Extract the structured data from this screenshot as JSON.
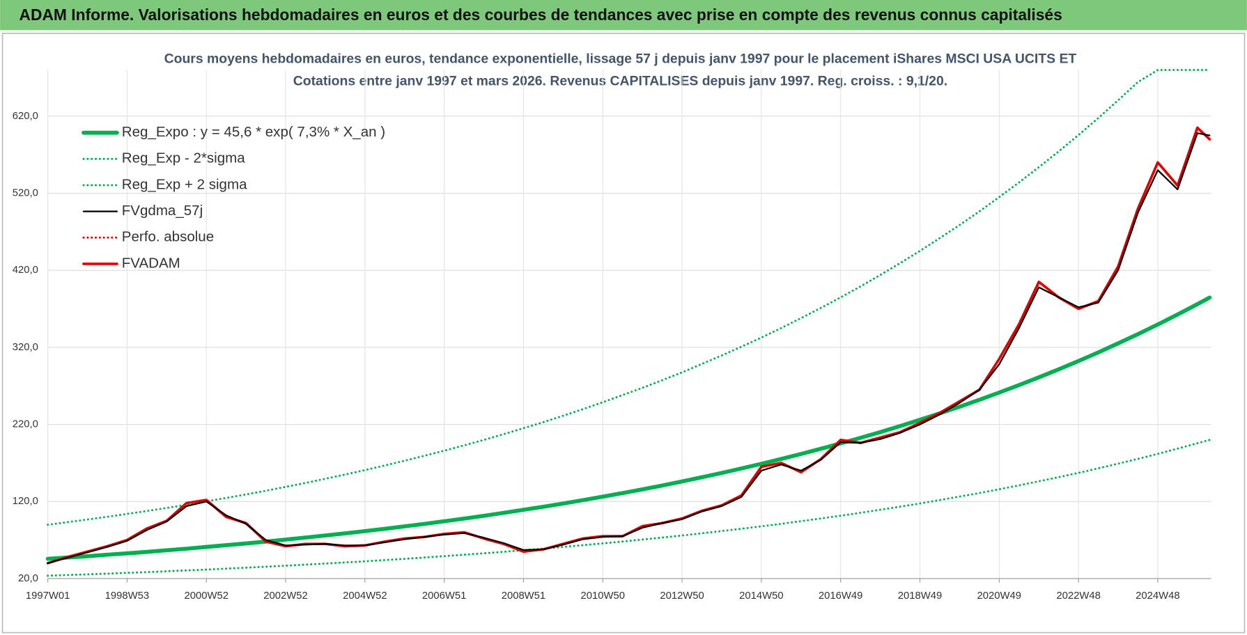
{
  "header": {
    "title": "ADAM Informe. Valorisations hebdomadaires en euros et des courbes de tendances avec prise en compte des revenus connus capitalisés"
  },
  "chart_data": {
    "type": "line",
    "title": "Cours moyens hebdomadaires en euros, tendance exponentielle, lissage 57 j depuis janv 1997 pour le placement iShares MSCI USA UCITS ET",
    "subtitle": "Cotations entre janv 1997 et mars 2026. Revenus CAPITALISES depuis janv 1997. Reg. croiss. : 9,1/20.",
    "x": [
      0,
      26,
      52,
      78,
      104,
      130,
      156,
      182,
      208,
      234,
      260,
      286,
      312,
      338,
      364,
      390,
      416,
      442,
      468,
      494,
      520,
      546,
      572,
      598,
      624,
      650,
      676,
      702,
      728,
      754,
      780,
      806,
      832,
      858,
      884,
      910,
      936,
      962,
      988,
      1014,
      1040,
      1066,
      1092,
      1118,
      1144,
      1170,
      1196,
      1222,
      1248,
      1274,
      1300,
      1326,
      1352,
      1378,
      1404,
      1430,
      1456,
      1482,
      1508,
      1524
    ],
    "xlim": [
      0,
      1526
    ],
    "xticks": [
      {
        "value": 0,
        "label": "1997W01"
      },
      {
        "value": 104,
        "label": "1998W53"
      },
      {
        "value": 208,
        "label": "2000W52"
      },
      {
        "value": 312,
        "label": "2002W52"
      },
      {
        "value": 416,
        "label": "2004W52"
      },
      {
        "value": 520,
        "label": "2006W51"
      },
      {
        "value": 624,
        "label": "2008W51"
      },
      {
        "value": 728,
        "label": "2010W50"
      },
      {
        "value": 832,
        "label": "2012W50"
      },
      {
        "value": 936,
        "label": "2014W50"
      },
      {
        "value": 1040,
        "label": "2016W49"
      },
      {
        "value": 1144,
        "label": "2018W49"
      },
      {
        "value": 1248,
        "label": "2020W49"
      },
      {
        "value": 1352,
        "label": "2022W48"
      },
      {
        "value": 1456,
        "label": "2024W48"
      }
    ],
    "ylim": [
      20,
      680
    ],
    "yticks": [
      {
        "value": 20,
        "label": "20,0"
      },
      {
        "value": 120,
        "label": "120,0"
      },
      {
        "value": 220,
        "label": "220,0"
      },
      {
        "value": 320,
        "label": "320,0"
      },
      {
        "value": 420,
        "label": "420,0"
      },
      {
        "value": 520,
        "label": "520,0"
      },
      {
        "value": 620,
        "label": "620,0"
      }
    ],
    "grid": true,
    "legend": "upper left",
    "series": [
      {
        "name": "Reg_Expo : y = 45,6 * exp( 7,3% *  X_an )",
        "color": "#00b050",
        "dash": "solid",
        "values": [
          45.6,
          47.3,
          49.0,
          50.9,
          52.7,
          54.7,
          56.7,
          58.8,
          61.0,
          63.3,
          65.6,
          68.0,
          70.6,
          73.2,
          75.9,
          78.7,
          81.6,
          84.6,
          87.8,
          91.0,
          94.4,
          97.9,
          101.5,
          105.3,
          109.2,
          113.2,
          117.4,
          121.8,
          126.3,
          131.0,
          135.8,
          140.8,
          146.0,
          151.5,
          157.1,
          162.9,
          168.9,
          175.2,
          181.7,
          188.4,
          195.4,
          202.6,
          210.1,
          217.9,
          226.0,
          234.4,
          243.0,
          252.0,
          261.4,
          271.1,
          281.1,
          291.5,
          302.3,
          313.5,
          325.2,
          337.2,
          349.7,
          362.7,
          376.1,
          384.6
        ]
      },
      {
        "name": "Reg_Exp - 2*sigma",
        "color": "#00b050",
        "dash": "dotted",
        "values": [
          23.7,
          24.6,
          25.5,
          26.4,
          27.4,
          28.4,
          29.5,
          30.6,
          31.7,
          32.9,
          34.1,
          35.4,
          36.7,
          38.0,
          39.5,
          40.9,
          42.4,
          44.0,
          45.6,
          47.3,
          49.1,
          50.9,
          52.8,
          54.8,
          56.8,
          58.9,
          61.0,
          63.3,
          65.7,
          68.1,
          70.6,
          73.2,
          75.9,
          78.8,
          81.7,
          84.7,
          87.8,
          91.1,
          94.5,
          98.0,
          101.6,
          105.4,
          109.3,
          113.3,
          117.5,
          121.9,
          126.4,
          131.0,
          135.9,
          141.0,
          146.2,
          151.6,
          157.2,
          163.0,
          169.1,
          175.3,
          181.8,
          188.6,
          195.6,
          200.0
        ]
      },
      {
        "name": "Reg_Exp + 2 sigma",
        "color": "#00b050",
        "dash": "dotted",
        "values": [
          89.8,
          93.2,
          96.6,
          100.2,
          103.9,
          107.7,
          111.7,
          115.9,
          120.2,
          124.6,
          129.2,
          134.0,
          139.0,
          144.1,
          149.5,
          155.0,
          160.8,
          166.7,
          172.9,
          179.3,
          185.9,
          192.8,
          200.0,
          207.4,
          215.1,
          223.0,
          231.3,
          239.9,
          248.8,
          258.1,
          267.5,
          277.4,
          287.6,
          298.5,
          309.5,
          320.9,
          332.7,
          345.1,
          357.9,
          371.1,
          384.9,
          399.1,
          413.9,
          429.3,
          445.2,
          461.8,
          478.7,
          496.4,
          515.0,
          534.1,
          553.8,
          574.3,
          595.5,
          617.6,
          640.6,
          664.3,
          680,
          680,
          680,
          680
        ]
      },
      {
        "name": "FVgdma_57j",
        "color": "#000000",
        "dash": "solid",
        "values": [
          40,
          47,
          54,
          61,
          69,
          83,
          94,
          114,
          120,
          102,
          91,
          70,
          63,
          64,
          65,
          63,
          63,
          67,
          71,
          74,
          77,
          79,
          73,
          66,
          57,
          58,
          64,
          71,
          74,
          75,
          86,
          92,
          97,
          107,
          114,
          126,
          160,
          168,
          160,
          174,
          197,
          196,
          201,
          209,
          220,
          233,
          248,
          265,
          298,
          345,
          398,
          385,
          372,
          378,
          420,
          495,
          550,
          525,
          598,
          595
        ]
      },
      {
        "name": "Perfo. absolue",
        "color": "#e00000",
        "dash": "dotted",
        "values": [
          40,
          48,
          55,
          62,
          70,
          85,
          95,
          118,
          122,
          100,
          92,
          68,
          62,
          65,
          65,
          62,
          63,
          68,
          72,
          74,
          78,
          80,
          72,
          65,
          55,
          58,
          65,
          72,
          75,
          75,
          88,
          92,
          98,
          108,
          115,
          128,
          165,
          170,
          158,
          175,
          200,
          196,
          203,
          210,
          222,
          235,
          250,
          265,
          305,
          350,
          405,
          385,
          370,
          380,
          425,
          500,
          560,
          530,
          605,
          590
        ]
      },
      {
        "name": "FVADAM",
        "color": "#e00000",
        "dash": "solid",
        "values": [
          40,
          48,
          55,
          62,
          70,
          85,
          95,
          118,
          122,
          100,
          92,
          68,
          62,
          65,
          65,
          62,
          63,
          68,
          72,
          74,
          78,
          80,
          72,
          65,
          55,
          58,
          65,
          72,
          75,
          75,
          88,
          92,
          98,
          108,
          115,
          128,
          165,
          170,
          158,
          175,
          200,
          196,
          203,
          210,
          222,
          235,
          250,
          265,
          305,
          350,
          405,
          385,
          370,
          380,
          425,
          500,
          560,
          530,
          605,
          590
        ]
      }
    ]
  }
}
